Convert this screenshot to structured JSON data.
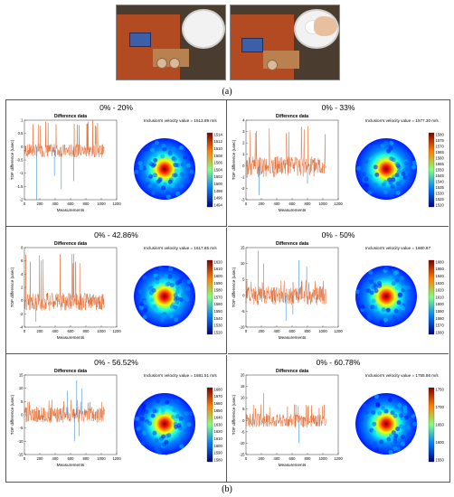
{
  "figure": {
    "caption_a": "(a)",
    "caption_b": "(b)"
  },
  "chart_data": [
    {
      "type": "line",
      "title": "Difference data",
      "panel_title": "0% - 20%",
      "xlabel": "Measurements",
      "ylabel": "TOF difference (usec)",
      "xlim": [
        0,
        1200
      ],
      "xticks": [
        "0",
        "200",
        "400",
        "600",
        "800",
        "1000",
        "1200"
      ],
      "ylim": [
        -2,
        1
      ],
      "yticks": [
        "1",
        "0.5",
        "0",
        "-0.5",
        "-1",
        "-1.5",
        "-2"
      ],
      "spike_max": 1,
      "base": [
        -0.4,
        0.1
      ],
      "neg_spikes": [
        [
          160,
          -2.0
        ],
        [
          390,
          -1.1
        ],
        [
          480,
          -1.6
        ],
        [
          640,
          -1.3
        ]
      ],
      "velocity_text": "Inclusion's velocity value = 1513.89 m/s",
      "colorbar_ticks": [
        "1514",
        "1512",
        "1510",
        "1508",
        "1506",
        "1504",
        "1502",
        "1500",
        "1498",
        "1496",
        "1494"
      ]
    },
    {
      "type": "line",
      "title": "Difference data",
      "panel_title": "0% - 33%",
      "xlabel": "Measurements",
      "ylabel": "TOF difference (usec)",
      "xlim": [
        0,
        1200
      ],
      "xticks": [
        "0",
        "200",
        "400",
        "600",
        "800",
        "1000",
        "1200"
      ],
      "ylim": [
        -3,
        4
      ],
      "yticks": [
        "4",
        "3",
        "2",
        "1",
        "0",
        "-1",
        "-2",
        "-3"
      ],
      "spike_max": 3.6,
      "base": [
        -1.0,
        0.8
      ],
      "neg_spikes": [
        [
          170,
          -2.6
        ],
        [
          800,
          -1.6
        ]
      ],
      "velocity_text": "Inclusion's velocity value = 1577.30 m/s",
      "colorbar_ticks": [
        "1580",
        "1575",
        "1570",
        "1565",
        "1560",
        "1555",
        "1550",
        "1545",
        "1540",
        "1535",
        "1530",
        "1525",
        "1520"
      ]
    },
    {
      "type": "line",
      "title": "Difference data",
      "panel_title": "0% - 42.86%",
      "xlabel": "Measurements",
      "ylabel": "TOF difference (usec)",
      "xlim": [
        0,
        1200
      ],
      "xticks": [
        "0",
        "200",
        "400",
        "600",
        "800",
        "1000",
        "1200"
      ],
      "ylim": [
        -4,
        8
      ],
      "yticks": [
        "8",
        "6",
        "4",
        "2",
        "0",
        "-2",
        "-4"
      ],
      "spike_max": 7.5,
      "base": [
        -1.5,
        1.2
      ],
      "neg_spikes": [
        [
          150,
          -3.2
        ]
      ],
      "velocity_text": "Inclusion's velocity value = 1617.65 m/s",
      "colorbar_ticks": [
        "1620",
        "1610",
        "1600",
        "1590",
        "1580",
        "1570",
        "1560",
        "1550",
        "1540",
        "1530",
        "1520"
      ]
    },
    {
      "type": "line",
      "title": "Difference data",
      "panel_title": "0% - 50%",
      "xlabel": "Measurements",
      "ylabel": "TOF difference (usec)",
      "xlim": [
        0,
        1200
      ],
      "xticks": [
        "0",
        "200",
        "400",
        "600",
        "800",
        "1000",
        "1200"
      ],
      "ylim": [
        -10,
        15
      ],
      "yticks": [
        "15",
        "10",
        "5",
        "0",
        "-5",
        "-10"
      ],
      "spike_max": 5,
      "base": [
        -3,
        3
      ],
      "pos_blue": [
        [
          160,
          14
        ],
        [
          230,
          10
        ],
        [
          690,
          11
        ],
        [
          790,
          9
        ]
      ],
      "neg_spikes": [
        [
          520,
          -8
        ],
        [
          610,
          -6
        ]
      ],
      "velocity_text": "Inclusion's velocity value = 1660.87",
      "colorbar_ticks": [
        "1660",
        "1650",
        "1640",
        "1630",
        "1620",
        "1610",
        "1600",
        "1590",
        "1580",
        "1570",
        "1560"
      ]
    },
    {
      "type": "line",
      "title": "Difference data",
      "panel_title": "0% - 56.52%",
      "xlabel": "Measurements",
      "ylabel": "TOF difference (usec)",
      "xlim": [
        0,
        1200
      ],
      "xticks": [
        "0",
        "200",
        "400",
        "600",
        "800",
        "1000",
        "1200"
      ],
      "ylim": [
        -15,
        15
      ],
      "yticks": [
        "15",
        "10",
        "5",
        "0",
        "-5",
        "-10",
        "-15"
      ],
      "spike_max": 6,
      "base": [
        -3,
        3
      ],
      "pos_blue": [
        [
          560,
          9
        ],
        [
          680,
          13
        ],
        [
          750,
          10
        ]
      ],
      "neg_spikes": [
        [
          650,
          -10
        ],
        [
          710,
          -8
        ]
      ],
      "velocity_text": "Inclusion's velocity value = 1681.51 m/s",
      "colorbar_ticks": [
        "1680",
        "1670",
        "1660",
        "1650",
        "1640",
        "1630",
        "1620",
        "1610",
        "1600",
        "1590",
        "1580"
      ]
    },
    {
      "type": "line",
      "title": "Difference data",
      "panel_title": "0% - 60.78%",
      "xlabel": "Measurements",
      "ylabel": "TOF difference (usec)",
      "xlim": [
        0,
        1200
      ],
      "xticks": [
        "0",
        "200",
        "400",
        "600",
        "800",
        "1000",
        "1200"
      ],
      "ylim": [
        -15,
        20
      ],
      "yticks": [
        "20",
        "15",
        "10",
        "5",
        "0",
        "-5",
        "-10",
        "-15"
      ],
      "spike_max": 7,
      "base": [
        -3,
        3
      ],
      "pos_blue": [
        [
          230,
          12
        ]
      ],
      "neg_spikes": [
        [
          690,
          -10
        ]
      ],
      "velocity_text": "Inclusion's velocity value = 1755.86 m/s",
      "colorbar_ticks": [
        "1750",
        "1700",
        "1650",
        "1600",
        "1550"
      ]
    }
  ]
}
